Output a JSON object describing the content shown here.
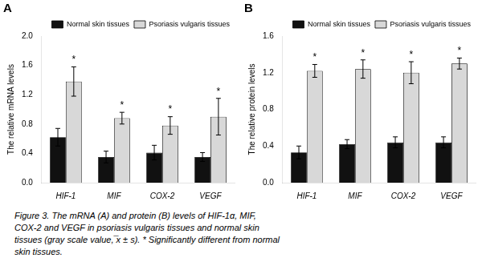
{
  "chart_data": [
    {
      "type": "bar",
      "title": "A",
      "ylabel": "The relative mRNA levels",
      "categories": [
        "HIF-1",
        "MIF",
        "COX-2",
        "VEGF"
      ],
      "series": [
        {
          "name": "Normal skin tissues",
          "color": "#111111",
          "values": [
            0.62,
            0.35,
            0.41,
            0.35
          ],
          "errors": [
            0.12,
            0.08,
            0.1,
            0.06
          ]
        },
        {
          "name": "Psoriasis vulgaris tissues",
          "color": "#d8d8d8",
          "values": [
            1.38,
            0.88,
            0.78,
            0.9
          ],
          "errors": [
            0.2,
            0.08,
            0.12,
            0.25
          ]
        }
      ],
      "ylim": [
        0,
        2.0
      ],
      "yticks": [
        {
          "value": 0,
          "label": "0.0"
        },
        0.4,
        0.8,
        1.2,
        1.6,
        {
          "value": 2,
          "label": "2.0"
        }
      ],
      "grid": false,
      "legend": "upper right",
      "annotations": [
        {
          "text": "*",
          "category": "HIF-1",
          "series": "Psoriasis vulgaris tissues"
        },
        {
          "text": "*",
          "category": "MIF",
          "series": "Psoriasis vulgaris tissues"
        },
        {
          "text": "*",
          "category": "COX-2",
          "series": "Psoriasis vulgaris tissues"
        },
        {
          "text": "*",
          "category": "VEGF",
          "series": "Psoriasis vulgaris tissues"
        }
      ]
    },
    {
      "type": "bar",
      "title": "B",
      "ylabel": "The relative protein levels",
      "categories": [
        "HIF-1",
        "MIF",
        "COX-2",
        "VEGF"
      ],
      "series": [
        {
          "name": "Normal skin tissues",
          "color": "#111111",
          "values": [
            0.33,
            0.42,
            0.44,
            0.44
          ],
          "errors": [
            0.07,
            0.05,
            0.06,
            0.06
          ]
        },
        {
          "name": "Psoriasis vulgaris tissues",
          "color": "#d8d8d8",
          "values": [
            1.22,
            1.24,
            1.2,
            1.3
          ],
          "errors": [
            0.07,
            0.1,
            0.12,
            0.06
          ]
        }
      ],
      "ylim": [
        0,
        1.6
      ],
      "yticks": [
        {
          "value": 0,
          "label": "0.0"
        },
        0.4,
        0.8,
        1.2,
        1.6
      ],
      "grid": false,
      "legend": "upper right",
      "annotations": [
        {
          "text": "*",
          "category": "HIF-1",
          "series": "Psoriasis vulgaris tissues"
        },
        {
          "text": "*",
          "category": "MIF",
          "series": "Psoriasis vulgaris tissues"
        },
        {
          "text": "*",
          "category": "COX-2",
          "series": "Psoriasis vulgaris tissues"
        },
        {
          "text": "*",
          "category": "VEGF",
          "series": "Psoriasis vulgaris tissues"
        }
      ]
    }
  ],
  "caption": [
    "Figure 3. The mRNA (A) and protein (B) levels of HIF-1α, MIF,",
    "COX-2 and VEGF in psoriasis vulgaris tissues and normal skin",
    "tissues (gray scale value, ̅x ± s). * Significantly different from normal",
    "skin tissues."
  ]
}
